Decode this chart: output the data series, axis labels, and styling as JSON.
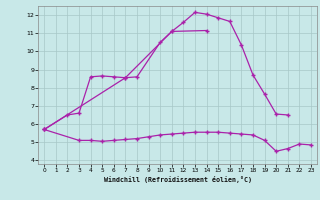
{
  "xlabel": "Windchill (Refroidissement éolien,°C)",
  "bg_color": "#c8e8e8",
  "grid_color": "#a8c8c8",
  "line_color": "#aa22aa",
  "xlim": [
    -0.5,
    23.5
  ],
  "ylim": [
    3.8,
    12.5
  ],
  "yticks": [
    4,
    5,
    6,
    7,
    8,
    9,
    10,
    11,
    12
  ],
  "xticks": [
    0,
    1,
    2,
    3,
    4,
    5,
    6,
    7,
    8,
    9,
    10,
    11,
    12,
    13,
    14,
    15,
    16,
    17,
    18,
    19,
    20,
    21,
    22,
    23
  ],
  "line1_x": [
    0,
    7,
    8,
    10,
    11,
    12,
    13,
    14,
    15,
    16,
    17,
    18,
    19,
    20,
    21
  ],
  "line1_y": [
    5.7,
    8.55,
    8.6,
    10.5,
    11.1,
    11.6,
    12.15,
    12.05,
    11.85,
    11.65,
    10.35,
    8.7,
    7.65,
    6.55,
    6.5
  ],
  "line2_x": [
    0,
    2,
    3,
    4,
    5,
    6,
    7,
    11,
    14
  ],
  "line2_y": [
    5.7,
    6.5,
    6.6,
    8.6,
    8.65,
    8.6,
    8.55,
    11.1,
    11.15
  ],
  "line3_x": [
    0,
    3,
    4,
    5,
    6,
    7,
    8,
    9,
    10,
    11,
    12,
    13,
    14,
    15,
    16,
    17,
    18,
    19,
    20,
    21,
    22,
    23
  ],
  "line3_y": [
    5.7,
    5.1,
    5.1,
    5.05,
    5.1,
    5.15,
    5.2,
    5.3,
    5.4,
    5.45,
    5.5,
    5.55,
    5.55,
    5.55,
    5.5,
    5.45,
    5.4,
    5.1,
    4.5,
    4.65,
    4.9,
    4.85
  ]
}
